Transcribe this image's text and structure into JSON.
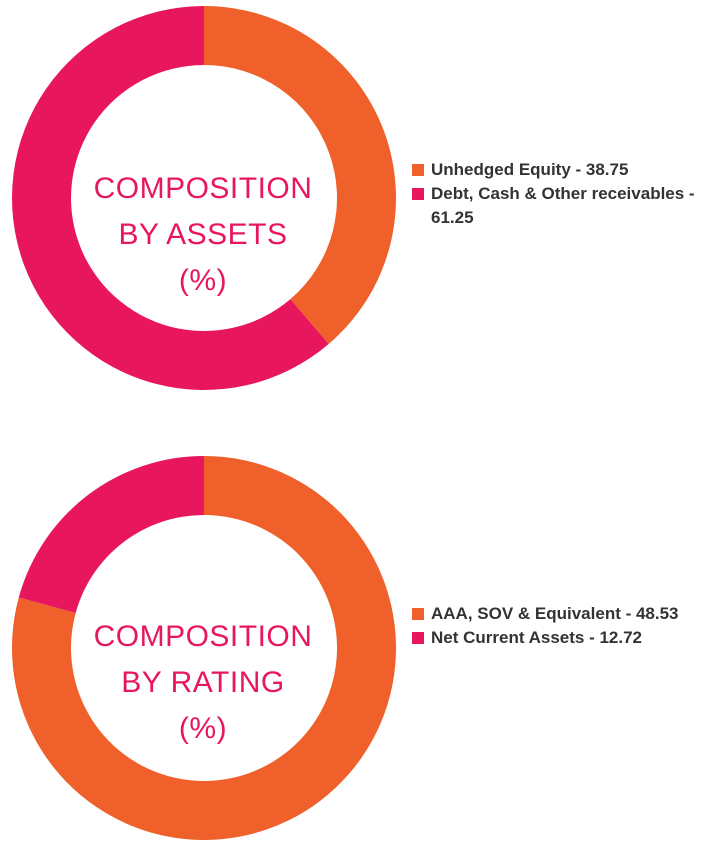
{
  "chart_data": [
    {
      "type": "pie",
      "title_lines": [
        "COMPOSITION",
        "BY ASSETS",
        "(%)"
      ],
      "slices": [
        {
          "label": "Unhedged Equity - 38.75",
          "value": 38.75,
          "color": "#f0602a"
        },
        {
          "label": "Debt, Cash & Other receivables - 61.25",
          "value": 61.25,
          "color": "#e8175d"
        }
      ]
    },
    {
      "type": "pie",
      "title_lines": [
        "COMPOSITION",
        "BY RATING",
        "(%)"
      ],
      "slices": [
        {
          "label": "AAA, SOV & Equivalent - 48.53",
          "value": 48.53,
          "color": "#f0602a"
        },
        {
          "label": "Net Current Assets - 12.72",
          "value": 12.72,
          "color": "#e8175d"
        }
      ]
    }
  ]
}
